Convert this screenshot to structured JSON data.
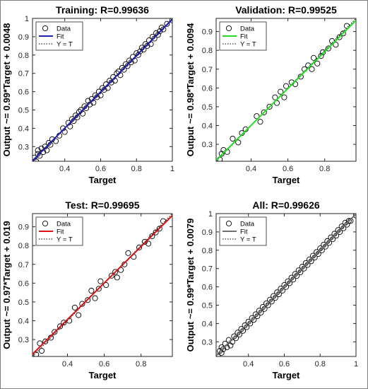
{
  "chart_data": [
    {
      "type": "scatter",
      "title": "Training: R=0.99636",
      "xlabel": "Target",
      "ylabel": "Output ~= 0.99*Target + 0.0048",
      "xlim": [
        0.22,
        1.0
      ],
      "ylim": [
        0.22,
        1.0
      ],
      "xticks": [
        "0.4",
        "0.6",
        "0.8",
        "1"
      ],
      "yticks": [
        "0.3",
        "0.4",
        "0.5",
        "0.6",
        "0.7",
        "0.8",
        "0.9",
        "1"
      ],
      "grid": false,
      "legend": {
        "position": "top-left",
        "entries": [
          "Data",
          "Fit",
          "Y = T"
        ]
      },
      "fit": {
        "slope": 0.99,
        "intercept": 0.0048,
        "color": "#1f1fb4"
      },
      "series": [
        {
          "name": "Data",
          "x": [
            0.23,
            0.24,
            0.25,
            0.25,
            0.26,
            0.27,
            0.28,
            0.29,
            0.3,
            0.31,
            0.32,
            0.33,
            0.35,
            0.37,
            0.39,
            0.4,
            0.42,
            0.43,
            0.44,
            0.45,
            0.46,
            0.47,
            0.48,
            0.49,
            0.5,
            0.51,
            0.52,
            0.53,
            0.54,
            0.55,
            0.56,
            0.57,
            0.58,
            0.59,
            0.6,
            0.61,
            0.62,
            0.63,
            0.64,
            0.65,
            0.66,
            0.67,
            0.68,
            0.69,
            0.7,
            0.71,
            0.72,
            0.73,
            0.74,
            0.75,
            0.76,
            0.77,
            0.78,
            0.79,
            0.8,
            0.81,
            0.82,
            0.83,
            0.84,
            0.85,
            0.86,
            0.87,
            0.88,
            0.89,
            0.9,
            0.91,
            0.92,
            0.93,
            0.94,
            0.95,
            0.97,
            1.0
          ],
          "y": [
            0.24,
            0.22,
            0.26,
            0.28,
            0.25,
            0.29,
            0.27,
            0.3,
            0.28,
            0.32,
            0.31,
            0.34,
            0.33,
            0.36,
            0.4,
            0.38,
            0.43,
            0.41,
            0.45,
            0.44,
            0.47,
            0.46,
            0.49,
            0.5,
            0.48,
            0.52,
            0.51,
            0.55,
            0.53,
            0.56,
            0.54,
            0.58,
            0.57,
            0.6,
            0.58,
            0.62,
            0.61,
            0.64,
            0.62,
            0.66,
            0.65,
            0.68,
            0.66,
            0.7,
            0.71,
            0.69,
            0.73,
            0.72,
            0.75,
            0.74,
            0.77,
            0.76,
            0.79,
            0.77,
            0.81,
            0.8,
            0.82,
            0.84,
            0.83,
            0.86,
            0.85,
            0.88,
            0.86,
            0.9,
            0.89,
            0.92,
            0.91,
            0.93,
            0.95,
            0.94,
            0.97,
            0.99
          ]
        }
      ]
    },
    {
      "type": "scatter",
      "title": "Validation: R=0.99525",
      "xlabel": "Target",
      "ylabel": "Output ~= 0.98*Target + 0.0094",
      "xlim": [
        0.21,
        0.97
      ],
      "ylim": [
        0.21,
        0.97
      ],
      "xticks": [
        "0.4",
        "0.6",
        "0.8"
      ],
      "yticks": [
        "0.3",
        "0.4",
        "0.5",
        "0.6",
        "0.7",
        "0.8",
        "0.9"
      ],
      "grid": false,
      "legend": {
        "position": "top-left",
        "entries": [
          "Data",
          "Fit",
          "Y = T"
        ]
      },
      "fit": {
        "slope": 0.98,
        "intercept": 0.0094,
        "color": "#22dd22"
      },
      "series": [
        {
          "name": "Data",
          "x": [
            0.23,
            0.24,
            0.25,
            0.27,
            0.3,
            0.33,
            0.35,
            0.37,
            0.43,
            0.45,
            0.47,
            0.5,
            0.53,
            0.54,
            0.56,
            0.58,
            0.59,
            0.62,
            0.64,
            0.67,
            0.69,
            0.71,
            0.73,
            0.74,
            0.76,
            0.78,
            0.79,
            0.82,
            0.84,
            0.86,
            0.88,
            0.9,
            0.92
          ],
          "y": [
            0.22,
            0.25,
            0.27,
            0.26,
            0.33,
            0.31,
            0.36,
            0.38,
            0.45,
            0.42,
            0.47,
            0.5,
            0.55,
            0.52,
            0.58,
            0.55,
            0.61,
            0.63,
            0.62,
            0.66,
            0.7,
            0.72,
            0.7,
            0.76,
            0.73,
            0.77,
            0.79,
            0.81,
            0.85,
            0.83,
            0.87,
            0.89,
            0.93
          ]
        }
      ]
    },
    {
      "type": "scatter",
      "title": "Test: R=0.99695",
      "xlabel": "Target",
      "ylabel": "Output ~= 0.97*Target + 0.019",
      "xlim": [
        0.21,
        0.97
      ],
      "ylim": [
        0.21,
        0.97
      ],
      "xticks": [
        "0.4",
        "0.6",
        "0.8"
      ],
      "yticks": [
        "0.3",
        "0.4",
        "0.5",
        "0.6",
        "0.7",
        "0.8",
        "0.9"
      ],
      "grid": false,
      "legend": {
        "position": "top-left",
        "entries": [
          "Data",
          "Fit",
          "Y = T"
        ]
      },
      "fit": {
        "slope": 0.97,
        "intercept": 0.019,
        "color": "#dd1111"
      },
      "series": [
        {
          "name": "Data",
          "x": [
            0.23,
            0.25,
            0.26,
            0.28,
            0.31,
            0.33,
            0.36,
            0.38,
            0.41,
            0.44,
            0.46,
            0.48,
            0.51,
            0.53,
            0.55,
            0.57,
            0.58,
            0.61,
            0.64,
            0.66,
            0.67,
            0.69,
            0.71,
            0.73,
            0.76,
            0.79,
            0.82,
            0.84,
            0.86,
            0.88,
            0.9,
            0.92
          ],
          "y": [
            0.22,
            0.28,
            0.24,
            0.29,
            0.31,
            0.34,
            0.37,
            0.39,
            0.4,
            0.47,
            0.43,
            0.49,
            0.51,
            0.56,
            0.52,
            0.57,
            0.61,
            0.59,
            0.64,
            0.66,
            0.63,
            0.67,
            0.7,
            0.76,
            0.74,
            0.79,
            0.82,
            0.81,
            0.85,
            0.87,
            0.89,
            0.93
          ]
        }
      ]
    },
    {
      "type": "scatter",
      "title": "All: R=0.99626",
      "xlabel": "Target",
      "ylabel": "Output ~= 0.99*Target + 0.0079",
      "xlim": [
        0.22,
        1.0
      ],
      "ylim": [
        0.22,
        1.0
      ],
      "xticks": [
        "0.4",
        "0.6",
        "0.8",
        "1"
      ],
      "yticks": [
        "0.3",
        "0.4",
        "0.5",
        "0.6",
        "0.7",
        "0.8",
        "0.9",
        "1"
      ],
      "grid": false,
      "legend": {
        "position": "top-left",
        "entries": [
          "Data",
          "Fit",
          "Y = T"
        ]
      },
      "fit": {
        "slope": 0.99,
        "intercept": 0.0079,
        "color": "#707070"
      },
      "series": [
        {
          "name": "Data",
          "x": [
            0.23,
            0.24,
            0.25,
            0.25,
            0.26,
            0.27,
            0.28,
            0.29,
            0.3,
            0.31,
            0.32,
            0.33,
            0.34,
            0.35,
            0.36,
            0.37,
            0.38,
            0.39,
            0.4,
            0.41,
            0.42,
            0.43,
            0.44,
            0.45,
            0.46,
            0.47,
            0.48,
            0.49,
            0.5,
            0.51,
            0.52,
            0.53,
            0.54,
            0.55,
            0.56,
            0.57,
            0.58,
            0.59,
            0.6,
            0.61,
            0.62,
            0.63,
            0.64,
            0.65,
            0.66,
            0.67,
            0.68,
            0.69,
            0.7,
            0.71,
            0.72,
            0.73,
            0.74,
            0.75,
            0.76,
            0.77,
            0.78,
            0.79,
            0.8,
            0.81,
            0.82,
            0.83,
            0.84,
            0.85,
            0.86,
            0.87,
            0.88,
            0.89,
            0.9,
            0.91,
            0.92,
            0.93,
            0.94,
            0.95,
            0.96,
            0.97,
            1.0
          ],
          "y": [
            0.22,
            0.25,
            0.24,
            0.27,
            0.26,
            0.29,
            0.27,
            0.31,
            0.28,
            0.3,
            0.33,
            0.32,
            0.35,
            0.34,
            0.37,
            0.36,
            0.39,
            0.38,
            0.41,
            0.4,
            0.43,
            0.42,
            0.45,
            0.44,
            0.47,
            0.46,
            0.49,
            0.48,
            0.51,
            0.5,
            0.53,
            0.52,
            0.55,
            0.54,
            0.57,
            0.56,
            0.59,
            0.58,
            0.61,
            0.6,
            0.63,
            0.62,
            0.65,
            0.64,
            0.67,
            0.66,
            0.69,
            0.68,
            0.71,
            0.7,
            0.73,
            0.72,
            0.75,
            0.74,
            0.77,
            0.76,
            0.79,
            0.78,
            0.81,
            0.8,
            0.83,
            0.82,
            0.85,
            0.84,
            0.87,
            0.86,
            0.89,
            0.88,
            0.91,
            0.9,
            0.93,
            0.92,
            0.95,
            0.94,
            0.96,
            0.96,
            0.99
          ]
        }
      ]
    }
  ]
}
